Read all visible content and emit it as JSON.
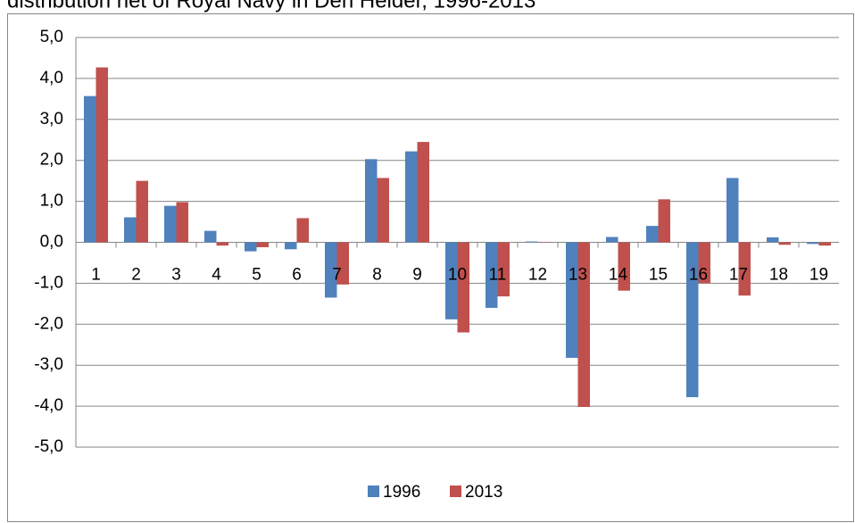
{
  "chart_data": {
    "type": "bar",
    "title": "distribution net of Royal Navy in Den Helder, 1996-2013",
    "categories": [
      "1",
      "2",
      "3",
      "4",
      "5",
      "6",
      "7",
      "8",
      "9",
      "10",
      "11",
      "12",
      "13",
      "14",
      "15",
      "16",
      "17",
      "18",
      "19"
    ],
    "series": [
      {
        "name": "1996",
        "color": "#4f81bd",
        "values": [
          3.57,
          0.61,
          0.89,
          0.28,
          -0.22,
          -0.17,
          -1.35,
          2.03,
          2.22,
          -1.88,
          -1.6,
          0.02,
          -2.82,
          0.13,
          0.4,
          -3.78,
          1.57,
          0.12,
          -0.04
        ]
      },
      {
        "name": "2013",
        "color": "#c0504d",
        "values": [
          4.27,
          1.5,
          0.98,
          -0.08,
          -0.12,
          0.59,
          -1.03,
          1.57,
          2.45,
          -2.2,
          -1.32,
          0.01,
          -4.02,
          -1.18,
          1.05,
          -1.0,
          -1.3,
          -0.06,
          -0.08
        ]
      }
    ],
    "ylim": [
      -5,
      5
    ],
    "yticks": [
      {
        "value": -5,
        "label": "-5,0"
      },
      {
        "value": -4,
        "label": "-4,0"
      },
      {
        "value": -3,
        "label": "-3,0"
      },
      {
        "value": -2,
        "label": "-2,0"
      },
      {
        "value": -1,
        "label": "-1,0"
      },
      {
        "value": 0,
        "label": "0,0"
      },
      {
        "value": 1,
        "label": "1,0"
      },
      {
        "value": 2,
        "label": "2,0"
      },
      {
        "value": 3,
        "label": "3,0"
      },
      {
        "value": 4,
        "label": "4,0"
      },
      {
        "value": 5,
        "label": "5,0"
      }
    ],
    "grid": true,
    "legend": "bottom"
  }
}
